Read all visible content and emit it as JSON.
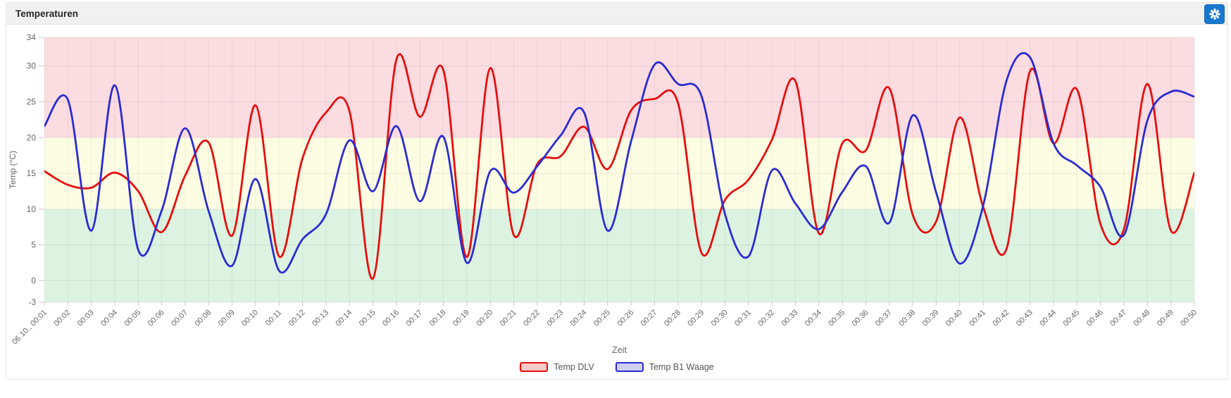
{
  "panel": {
    "title": "Temperaturen"
  },
  "header": {
    "settings_button": "gear"
  },
  "chart_data": {
    "type": "line",
    "subtype": "spline",
    "title": "Temperaturen",
    "xlabel": "Zeit",
    "ylabel": "Temp (°C)",
    "ylim": [
      -3,
      34
    ],
    "yticks": [
      34,
      30,
      25,
      20,
      15,
      10,
      5,
      0,
      -3
    ],
    "grid": true,
    "legend_position": "bottom",
    "categories": [
      "06.10., 00:01",
      "00:02",
      "00:03",
      "00:04",
      "00:05",
      "00:06",
      "00:07",
      "00:08",
      "00:09",
      "00:10",
      "00:11",
      "00:12",
      "00:13",
      "00:14",
      "00:15",
      "00:16",
      "00:17",
      "00:18",
      "00:19",
      "00:20",
      "00:21",
      "00:22",
      "00:23",
      "00:24",
      "00:25",
      "00:26",
      "00:27",
      "00:28",
      "00:29",
      "00:30",
      "00:31",
      "00:32",
      "00:33",
      "00:34",
      "00:35",
      "00:36",
      "00:37",
      "00:38",
      "00:39",
      "00:40",
      "00:41",
      "00:42",
      "00:43",
      "00:44",
      "00:45",
      "00:46",
      "00:47",
      "00:48",
      "00:49",
      "00:50"
    ],
    "series": [
      {
        "name": "Temp DLV",
        "color": "#e60e0e",
        "legend_fill": "rgba(230,14,14,0.22)",
        "values": [
          15.3,
          13.4,
          13.0,
          15.1,
          12.5,
          6.8,
          14.7,
          19.3,
          6.3,
          24.5,
          3.4,
          17.1,
          23.5,
          23.7,
          0.3,
          30.9,
          22.9,
          29.4,
          3.3,
          29.7,
          6.4,
          16.3,
          17.4,
          21.5,
          15.6,
          23.8,
          25.4,
          24.8,
          3.9,
          11.3,
          14.1,
          19.7,
          27.9,
          6.6,
          19.2,
          18.2,
          26.9,
          9.2,
          8.3,
          22.8,
          10.3,
          4.5,
          29.3,
          19.2,
          26.7,
          7.9,
          7.2,
          27.5,
          7.0,
          15.1
        ]
      },
      {
        "name": "Temp B1 Waage",
        "color": "#2b2bd2",
        "legend_fill": "rgba(43,43,210,0.22)",
        "values": [
          21.6,
          25.3,
          7.0,
          27.3,
          4.3,
          9.8,
          21.3,
          9.7,
          2.1,
          14.2,
          1.4,
          5.8,
          9.3,
          19.6,
          12.5,
          21.6,
          11.1,
          20.1,
          2.5,
          15.3,
          12.3,
          16.0,
          20.3,
          23.5,
          7.0,
          19.5,
          30.2,
          27.5,
          25.8,
          9.3,
          3.4,
          15.4,
          10.8,
          7.2,
          12.4,
          16.0,
          8.1,
          23.1,
          12.3,
          2.4,
          10.5,
          28.0,
          31.2,
          19.2,
          16.1,
          13.1,
          6.4,
          22.4,
          26.4,
          25.7
        ]
      }
    ],
    "bands": [
      {
        "from": 20,
        "to": 34,
        "color": "#fbdce1"
      },
      {
        "from": 10,
        "to": 20,
        "color": "#fcfce3"
      },
      {
        "from": -3,
        "to": 10,
        "color": "#dcf3e1"
      }
    ]
  },
  "colors": {
    "accent_button": "#1878cf",
    "grid_line": "#000000",
    "axis_text": "#666666",
    "header_bg": "#f1f1f1"
  }
}
